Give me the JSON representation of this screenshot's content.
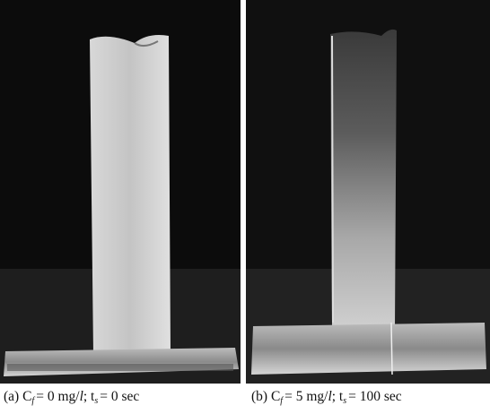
{
  "panels": [
    {
      "caption": [
        "(a) C",
        "f",
        "= 0 mg/",
        "l",
        "; t",
        "s",
        "= 0 sec"
      ]
    },
    {
      "caption": [
        "(b) C",
        "f",
        "= 5 mg/",
        "l",
        "; t",
        "s",
        "= 100 sec"
      ]
    }
  ]
}
